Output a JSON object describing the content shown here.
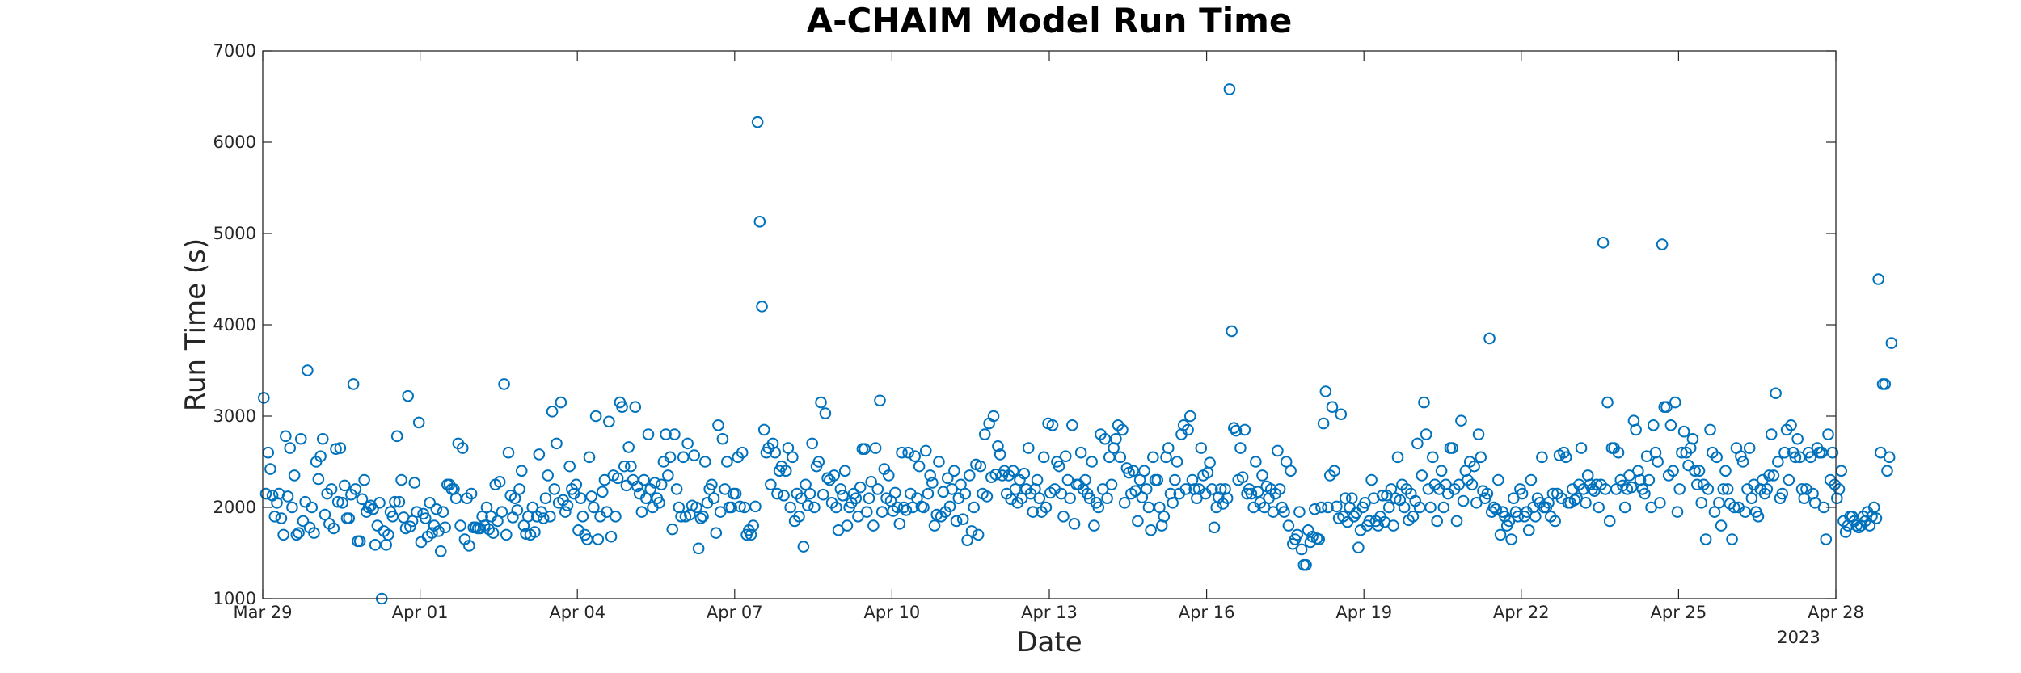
{
  "chart_data": {
    "type": "scatter",
    "title": "A-CHAIM Model Run Time",
    "xlabel": "Date",
    "ylabel": "Run Time (s)",
    "x_axis_year": "2023",
    "xlim": [
      "2023-03-29",
      "2023-04-28"
    ],
    "ylim": [
      1000,
      7000
    ],
    "x_tick_labels": [
      "Mar 29",
      "Apr 01",
      "Apr 04",
      "Apr 07",
      "Apr 10",
      "Apr 13",
      "Apr 16",
      "Apr 19",
      "Apr 22",
      "Apr 25",
      "Apr 28"
    ],
    "x_tick_dates": [
      "2023-03-29",
      "2023-04-01",
      "2023-04-04",
      "2023-04-07",
      "2023-04-10",
      "2023-04-13",
      "2023-04-16",
      "2023-04-19",
      "2023-04-22",
      "2023-04-25",
      "2023-04-28"
    ],
    "y_ticks": [
      1000,
      2000,
      3000,
      4000,
      5000,
      6000,
      7000
    ],
    "grid": false,
    "marker": "open-circle",
    "marker_color": "#0072BD",
    "points_per_day": 24,
    "series": [
      {
        "values": [
          3200,
          2150,
          2600,
          2420,
          2130,
          1900,
          2050,
          2150,
          1880,
          1700,
          2780,
          2120,
          2650,
          2000,
          2350,
          1700,
          1720,
          2750,
          1850,
          2060,
          3500,
          1780,
          2000,
          1720,
          2500,
          2310,
          2560,
          2750,
          1920,
          2150,
          1820,
          2200,
          1770,
          2640,
          2060,
          2650,
          2050,
          2240,
          1880,
          1880,
          2140,
          3350,
          2200,
          1630,
          1630,
          2090,
          2300,
          1950,
          2000,
          2020,
          1980,
          1590,
          1800,
          2050,
          1000,
          1740,
          1590,
          1700,
          1950,
          1900,
          2060,
          2780,
          2060,
          2300,
          1890,
          1770,
          3220,
          1790,
          1850,
          2270,
          1950,
          2930,
          1620,
          1930,
          1880,
          1680,
          2050,
          1720,
          1800,
          1980,
          1740,
          1520,
          1950,
          1780,
          2250,
          2250,
          2200,
          2200,
          2100,
          2700,
          1800,
          2650,
          1650,
          2100,
          1580,
          2150,
          1780,
          1780,
          1770,
          1770,
          1900,
          1800,
          2000,
          1760,
          1900,
          1720,
          2250,
          1850,
          2280,
          1950,
          3350,
          1700,
          2600,
          2130,
          1890,
          2100,
          1970,
          2200,
          2400,
          1800,
          1710,
          1900,
          1700,
          2000,
          1730,
          1900,
          2580,
          1950,
          1880,
          2100,
          2350,
          1900,
          3050,
          2200,
          2700,
          2050,
          3150,
          2080,
          1950,
          2020,
          2450,
          2200,
          2150,
          2250,
          1750,
          2100,
          1900,
          1700,
          1650,
          2550,
          2120,
          2000,
          3000,
          1650,
          1900,
          2170,
          2300,
          1950,
          2940,
          1680,
          2350,
          1900,
          2320,
          3150,
          3100,
          2450,
          2240,
          2660,
          2450,
          2300,
          3100,
          2230,
          2150,
          1950,
          2300,
          2100,
          2800,
          2200,
          2000,
          2270,
          2100,
          2050,
          2250,
          2500,
          2800,
          2350,
          2550,
          1760,
          2800,
          2200,
          2000,
          1900,
          2550,
          1900,
          2700,
          1920,
          2020,
          2570,
          2000,
          1550,
          1880,
          1900,
          2500,
          2050,
          2200,
          2250,
          2100,
          1720,
          2900,
          1950,
          2750,
          2200,
          2500,
          2000,
          2000,
          2150,
          2150,
          2550,
          2010,
          2600,
          2000,
          1700,
          1750,
          1700,
          1800,
          2010,
          6220,
          5130,
          4200,
          2850,
          2600,
          2650,
          2250,
          2700,
          2600,
          2150,
          2400,
          2450,
          2130,
          2400,
          2650,
          2000,
          2550,
          1850,
          2150,
          1900,
          2100,
          1570,
          2250,
          2020,
          2150,
          2700,
          2000,
          2450,
          2500,
          3150,
          2140,
          3030,
          2320,
          2300,
          2050,
          2350,
          2000,
          1750,
          2200,
          2130,
          2400,
          1800,
          2000,
          2050,
          2150,
          2100,
          1900,
          2220,
          2640,
          2640,
          1950,
          2100,
          2280,
          1800,
          2650,
          2200,
          3170,
          1950,
          2420,
          2100,
          2350,
          2070,
          1960,
          2160,
          2000,
          1820,
          2600,
          2000,
          1970,
          2600,
          2150,
          2000,
          2560,
          2100,
          2450,
          2010,
          2000,
          2620,
          2150,
          2350,
          2270,
          1800,
          1920,
          2500,
          1900,
          2170,
          1950,
          2320,
          2010,
          2200,
          2400,
          1850,
          2100,
          2250,
          1870,
          2150,
          1640,
          2350,
          1740,
          2000,
          2470,
          1700,
          2450,
          2150,
          2800,
          2120,
          2920,
          2330,
          3000,
          2360,
          2670,
          2580,
          2350,
          2400,
          2150,
          2350,
          2090,
          2400,
          2200,
          2050,
          2300,
          2100,
          2370,
          2200,
          2650,
          2150,
          1950,
          2200,
          2300,
          2100,
          1950,
          2550,
          2000,
          2920,
          2160,
          2900,
          2200,
          2500,
          2450,
          2150,
          1900,
          2560,
          2300,
          2100,
          2900,
          1820,
          2250,
          2250,
          2600,
          2200,
          2300,
          2150,
          2100,
          2500,
          1800,
          2050,
          2000,
          2800,
          2200,
          2750,
          2100,
          2550,
          2250,
          2650,
          2750,
          2900,
          2550,
          2850,
          2050,
          2430,
          2380,
          2150,
          2400,
          2180,
          1850,
          2300,
          2110,
          2400,
          2200,
          2000,
          1750,
          2550,
          2300,
          2300,
          2000,
          1800,
          1900,
          2550,
          2650,
          2150,
          2050,
          2300,
          2500,
          2150,
          2800,
          2900,
          2200,
          2850,
          3000,
          2300,
          2200,
          2100,
          2200,
          2650,
          2350,
          2150,
          2380,
          2490,
          2200,
          1780,
          2000,
          2110,
          2200,
          2040,
          2200,
          2100,
          6580,
          3930,
          2870,
          2840,
          2300,
          2650,
          2330,
          2850,
          2150,
          2200,
          2150,
          2000,
          2500,
          2170,
          2050,
          2350,
          2000,
          2230,
          2100,
          2200,
          1950,
          2150,
          2620,
          2200,
          2000,
          1950,
          2500,
          1800,
          2400,
          1600,
          1650,
          1700,
          1950,
          1540,
          1370,
          1370,
          1750,
          1620,
          1680,
          1980,
          1660,
          1650,
          2000,
          2920,
          3270,
          2000,
          2350,
          3100,
          2400,
          2010,
          1880,
          3020,
          1900,
          2100,
          1840,
          2000,
          2100,
          1900,
          1940,
          1560,
          1750,
          2000,
          2050,
          1800,
          1850,
          2300,
          2100,
          1850,
          1800,
          1900,
          2130,
          1840,
          2130,
          2000,
          2200,
          1800,
          2100,
          2550,
          2080,
          2250,
          2000,
          2200,
          1860,
          2150,
          1900,
          2070,
          2700,
          2000,
          2350,
          3150,
          2800,
          2200,
          2000,
          2550,
          2250,
          1850,
          2200,
          2400,
          2000,
          2250,
          2150,
          2650,
          2650,
          2200,
          1850,
          2250,
          2950,
          2070,
          2400,
          2300,
          2500,
          2250,
          2450,
          2050,
          2800,
          2550,
          2180,
          2100,
          2150,
          3850,
          1950,
          2000,
          1980,
          2300,
          1700,
          1950,
          1900,
          1800,
          1850,
          1650,
          2100,
          1950,
          1900,
          2200,
          2150,
          1900,
          1950,
          1750,
          2300,
          2000,
          1900,
          2100,
          2050,
          2550,
          2000,
          2000,
          2050,
          1900,
          2150,
          1850,
          2150,
          2570,
          2100,
          2600,
          2550,
          2050,
          2050,
          2200,
          2080,
          2100,
          2250,
          2650,
          2200,
          2050,
          2350,
          2250,
          2200,
          2180,
          2250,
          2000,
          2250,
          4900,
          2200,
          3150,
          1850,
          2650,
          2650,
          2200,
          2600,
          2300,
          2240,
          2000,
          2200,
          2350,
          2220,
          2950,
          2850,
          2400,
          2300,
          2200,
          2150,
          2560,
          2300,
          2000,
          2900,
          2600,
          2500,
          2050,
          4880,
          3100,
          3100,
          2350,
          2900,
          2400,
          3150,
          1950,
          2200,
          2600,
          2830,
          2600,
          2460,
          2650,
          2750,
          2400,
          2250,
          2400,
          2050,
          2250,
          1650,
          2200,
          2850,
          2600,
          1950,
          2550,
          2050,
          1800,
          2200,
          2400,
          2200,
          2040,
          1650,
          2000,
          2650,
          2000,
          2560,
          2500,
          1950,
          2200,
          2650,
          2100,
          2250,
          1950,
          1900,
          2200,
          2300,
          2150,
          2200,
          2350,
          2800,
          2350,
          3250,
          2500,
          2100,
          2150,
          2600,
          2850,
          2300,
          2900,
          2600,
          2550,
          2750,
          2550,
          2200,
          2100,
          2200,
          2600,
          2550,
          2150,
          2050,
          2650,
          2600,
          2600,
          2000,
          1650,
          2800,
          2300,
          2600,
          2250,
          2100,
          2200,
          2400,
          1850,
          1730,
          1800,
          1900,
          1900,
          1850,
          1800,
          1780,
          1800,
          1900,
          1850,
          1950,
          1800,
          1900,
          2000,
          1880,
          4500,
          2600,
          3350,
          3350,
          2400,
          2550,
          3800
        ]
      }
    ]
  }
}
